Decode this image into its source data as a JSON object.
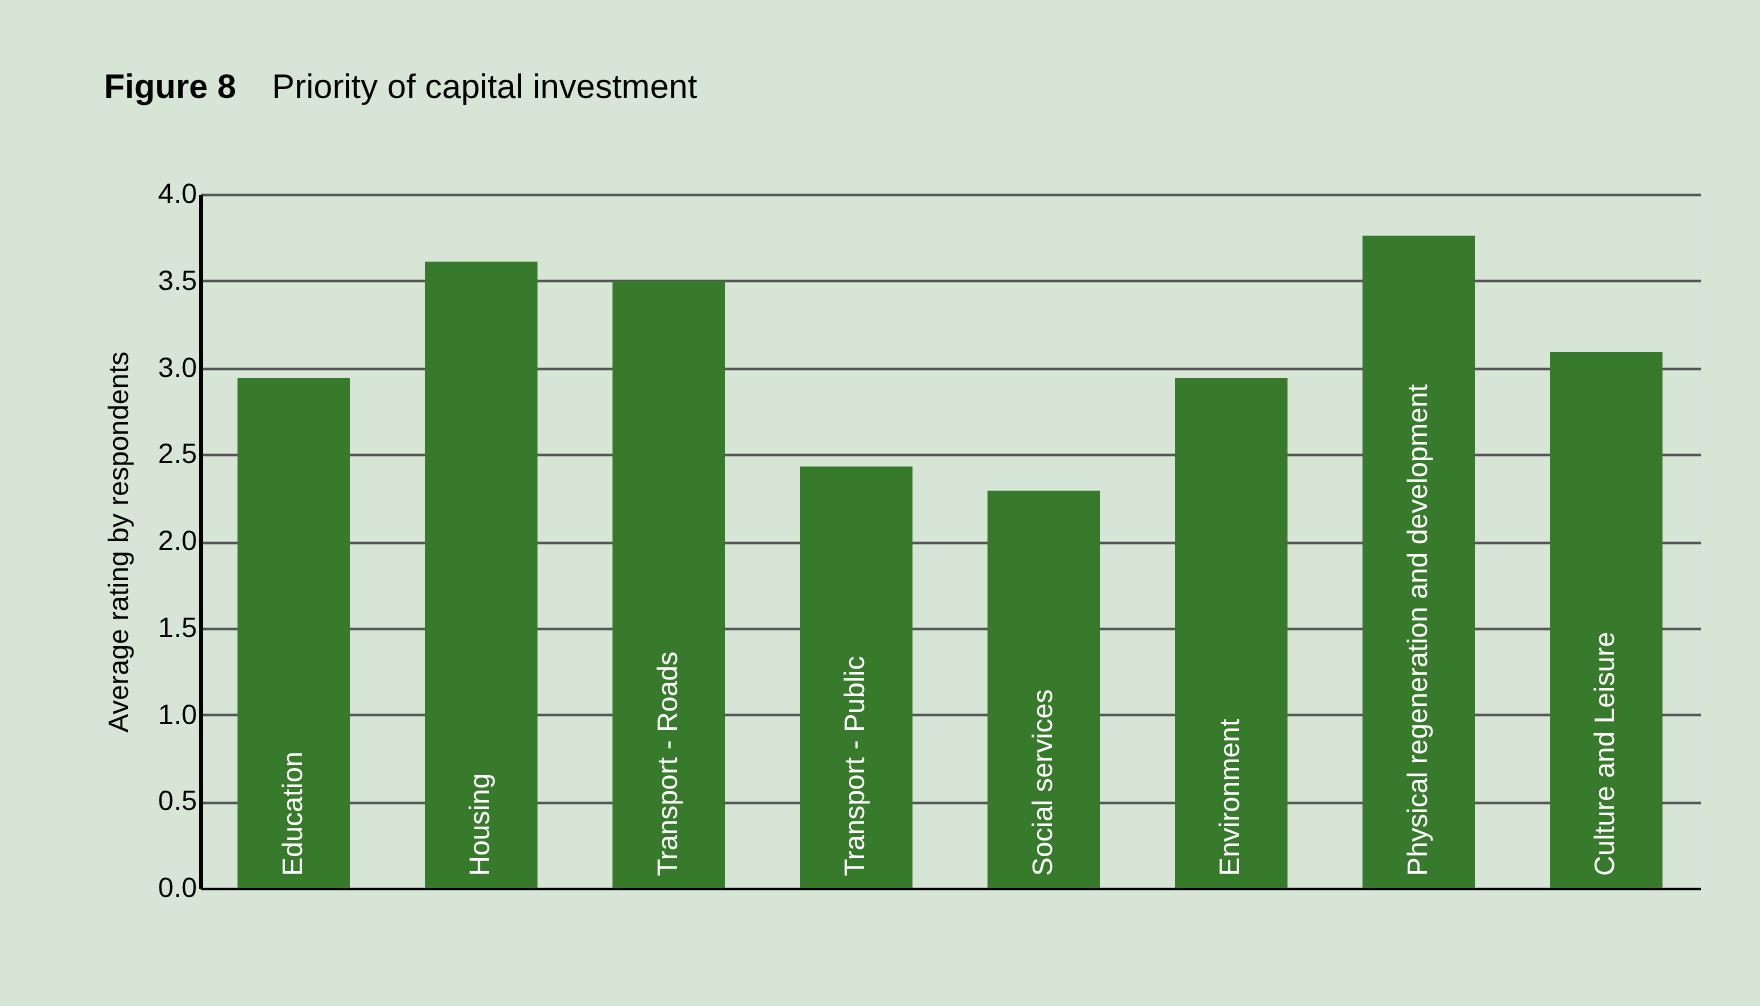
{
  "chart_data": {
    "type": "bar",
    "title": "Figure 8",
    "subtitle": "Priority of capital investment",
    "ylabel": "Average rating by respondents",
    "categories": [
      "Education",
      "Housing",
      "Transport - Roads",
      "Transport - Public",
      "Social services",
      "Environment",
      "Physical regeneration and development",
      "Culture and Leisure"
    ],
    "values": [
      2.94,
      3.61,
      3.5,
      2.43,
      2.29,
      2.94,
      3.76,
      3.09
    ],
    "color": "#387a2c",
    "ylim": [
      0,
      4
    ],
    "yticks": [
      {
        "value": 0,
        "label": "0.0"
      },
      {
        "value": 0.5,
        "label": "0.5"
      },
      {
        "value": 1,
        "label": "1.0"
      },
      1.5,
      {
        "value": 2,
        "label": "2.0"
      },
      2.5,
      {
        "value": 3,
        "label": "3.0"
      },
      3.5,
      {
        "value": 4,
        "label": "4.0"
      }
    ],
    "grid": "y"
  }
}
